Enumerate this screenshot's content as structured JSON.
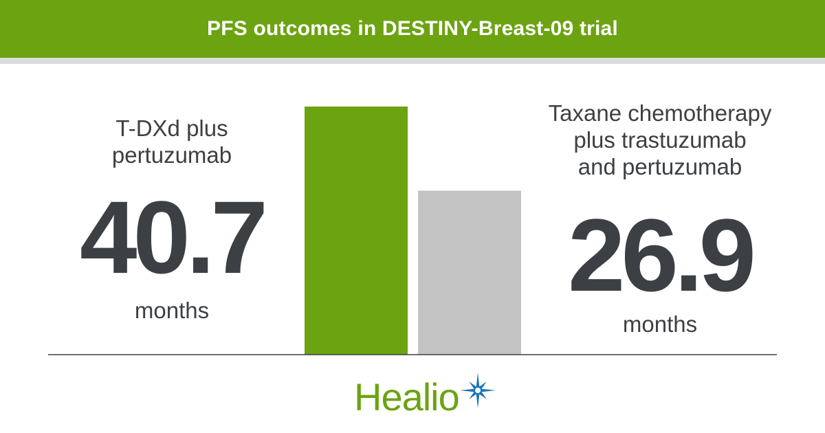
{
  "header": {
    "title": "PFS outcomes in DESTINY-Breast-09 trial"
  },
  "left": {
    "label_line1": "T-DXd plus",
    "label_line2": "pertuzumab",
    "value": "40.7",
    "unit": "months"
  },
  "right": {
    "label_line1": "Taxane chemotherapy",
    "label_line2": "plus trastuzumab",
    "label_line3": "and pertuzumab",
    "value": "26.9",
    "unit": "months"
  },
  "chart_data": {
    "type": "bar",
    "title": "PFS outcomes in DESTINY-Breast-09 trial",
    "categories": [
      "T-DXd plus pertuzumab",
      "Taxane chemotherapy plus trastuzumab and pertuzumab"
    ],
    "values": [
      40.7,
      26.9
    ],
    "colors": [
      "#6ca311",
      "#c3c3c3"
    ],
    "unit": "months",
    "ylim": [
      0,
      40.7
    ],
    "grid": false,
    "legend": "none"
  },
  "logo": {
    "text": "Healio",
    "text_color": "#6ca311",
    "star_color": "#1b74b8",
    "icon": "star-burst-icon"
  },
  "colors": {
    "header_bg": "#6ca311",
    "stripe": "#dcdcdc",
    "text": "#3c4044",
    "baseline": "#3c4044"
  }
}
